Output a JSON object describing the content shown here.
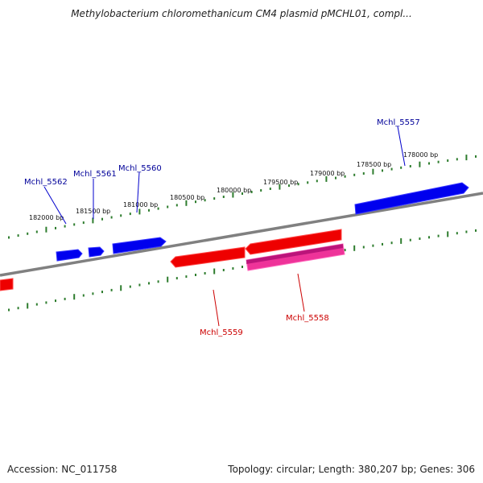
{
  "title": "Methylobacterium chloromethanicum CM4 plasmid pMCHL01, compl...",
  "footer": {
    "accession": "Accession: NC_011758",
    "summary": "Topology: circular; Length: 380,207 bp; Genes: 306"
  },
  "colors": {
    "backbone": "#808080",
    "tick": "#2e7d2e",
    "forward_gene": "#0000ee",
    "reverse_gene": "#ee0000",
    "highlight_gene": "#ee3399",
    "forward_label": "#000099",
    "reverse_label": "#cc0000"
  },
  "ticks": [
    {
      "bp": 182000,
      "label": "182000 bp"
    },
    {
      "bp": 181500,
      "label": "181500 bp"
    },
    {
      "bp": 181000,
      "label": "181000 bp"
    },
    {
      "bp": 180500,
      "label": "180500 bp"
    },
    {
      "bp": 180000,
      "label": "180000 bp"
    },
    {
      "bp": 179500,
      "label": "179500 bp"
    },
    {
      "bp": 179000,
      "label": "179000 bp"
    },
    {
      "bp": 178500,
      "label": "178500 bp"
    },
    {
      "bp": 178000,
      "label": "178000 bp"
    }
  ],
  "gene_labels": [
    {
      "name": "Mchl_5562",
      "strand": "forward"
    },
    {
      "name": "Mchl_5561",
      "strand": "forward"
    },
    {
      "name": "Mchl_5560",
      "strand": "forward"
    },
    {
      "name": "Mchl_5557",
      "strand": "forward"
    },
    {
      "name": "Mchl_5559",
      "strand": "reverse"
    },
    {
      "name": "Mchl_5558",
      "strand": "reverse"
    }
  ]
}
